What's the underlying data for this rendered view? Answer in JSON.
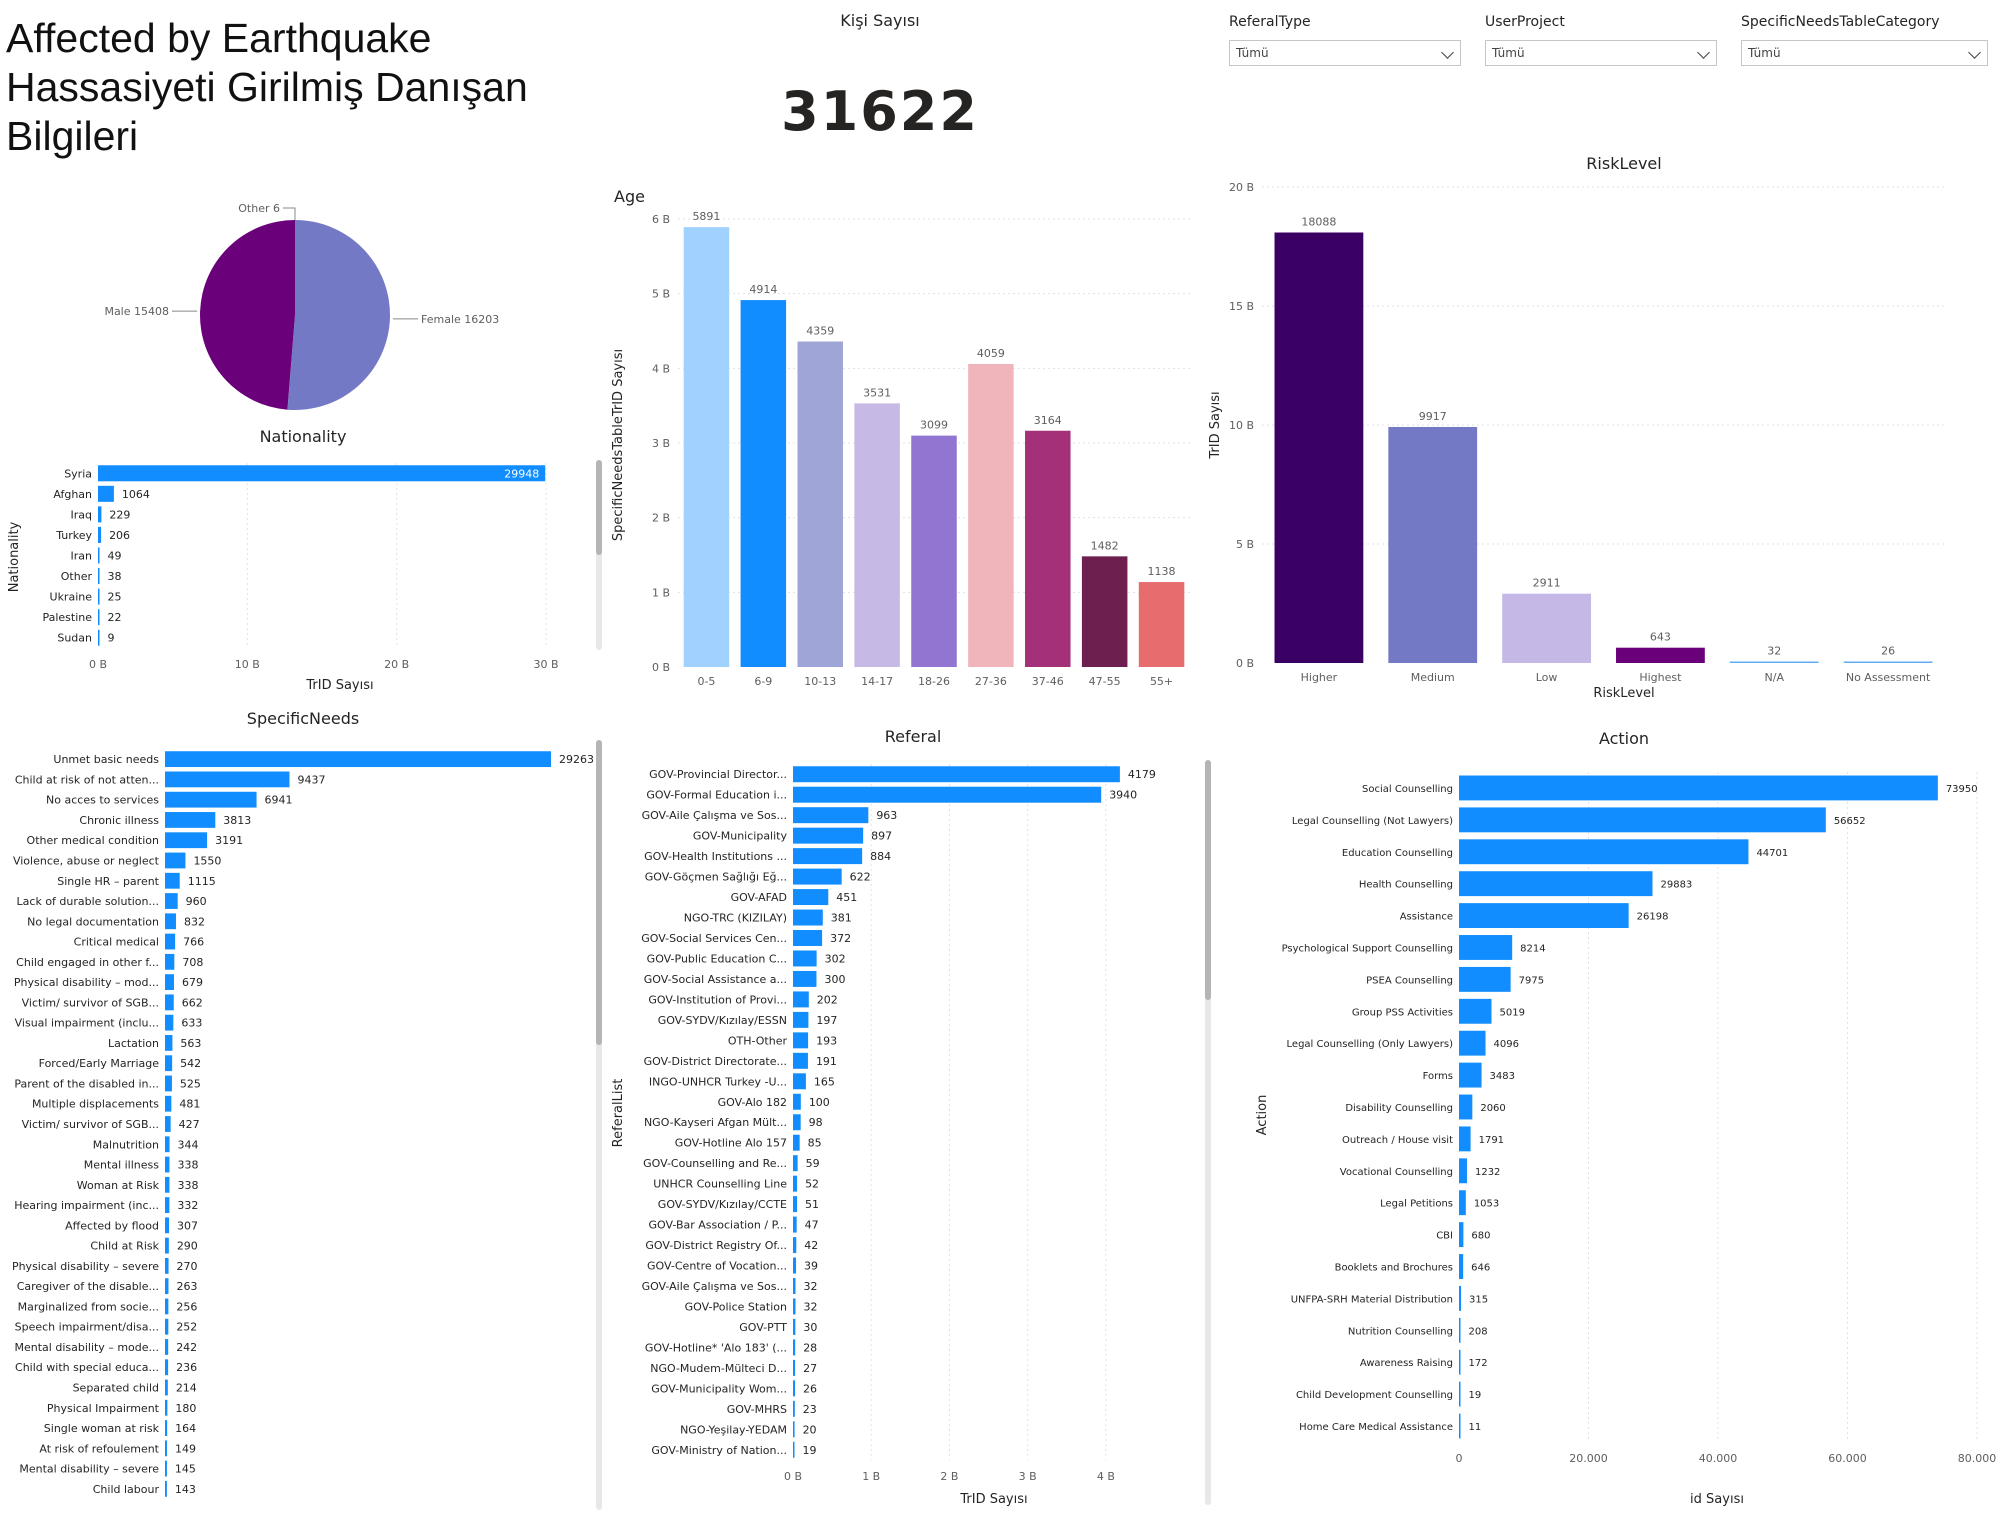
{
  "page": {
    "title": "Affected by Earthquake Hassasiyeti Girilmiş Danışan Bilgileri"
  },
  "kpi": {
    "label": "Kişi Sayısı",
    "value": "31622"
  },
  "slicers": [
    {
      "label": "ReferalType",
      "value": "Tümü"
    },
    {
      "label": "UserProject",
      "value": "Tümü"
    },
    {
      "label": "SpecificNeedsTableCategory",
      "value": "Tümü"
    }
  ],
  "colors": {
    "accent": "#118DFF",
    "text": "#252423",
    "grid": "#e1e1e1"
  },
  "chart_data": [
    {
      "id": "gender",
      "type": "pie",
      "title": "",
      "slices": [
        {
          "label": "Female",
          "value": 16203,
          "text": "Female 16203",
          "color": "#7479C6"
        },
        {
          "label": "Other",
          "value": 6,
          "text": "Other 6",
          "color": "#B0B0B0"
        },
        {
          "label": "Male",
          "value": 15408,
          "text": "Male 15408",
          "color": "#6B007B"
        }
      ]
    },
    {
      "id": "nationality",
      "type": "bar",
      "orientation": "horizontal",
      "title": "Nationality",
      "xlabel": "TrID Sayısı",
      "ylabel": "Nationality",
      "categories": [
        "Syria",
        "Afghan",
        "Iraq",
        "Turkey",
        "Iran",
        "Other",
        "Ukraine",
        "Palestine",
        "Sudan"
      ],
      "values": [
        29948,
        1064,
        229,
        206,
        49,
        38,
        25,
        22,
        9
      ],
      "xlim": [
        0,
        30000
      ],
      "ticks": [
        0,
        10000,
        20000,
        30000
      ],
      "tick_labels": [
        "0 B",
        "10 B",
        "20 B",
        "30 B"
      ],
      "color": "#118DFF",
      "grid": true
    },
    {
      "id": "age",
      "type": "bar",
      "title": "Age",
      "xlabel": "",
      "ylabel": "SpecificNeedsTableTrID Sayısı",
      "categories": [
        "0-5",
        "6-9",
        "10-13",
        "14-17",
        "18-26",
        "27-36",
        "37-46",
        "47-55",
        "55+"
      ],
      "values": [
        5891,
        4914,
        4359,
        3531,
        3099,
        4059,
        3164,
        1482,
        1138
      ],
      "colors": [
        "#A0D1FF",
        "#118DFF",
        "#A0A5D8",
        "#C6B9E6",
        "#9175D0",
        "#EFB5BA",
        "#A43079",
        "#6D1F4F",
        "#E66C6E"
      ],
      "ylim": [
        0,
        6000
      ],
      "ticks": [
        0,
        1000,
        2000,
        3000,
        4000,
        5000,
        6000
      ],
      "tick_labels": [
        "0 B",
        "1 B",
        "2 B",
        "3 B",
        "4 B",
        "5 B",
        "6 B"
      ],
      "grid": true
    },
    {
      "id": "risk",
      "type": "bar",
      "title": "RiskLevel",
      "xlabel": "RiskLevel",
      "ylabel": "TrID Sayısı",
      "categories": [
        "Higher",
        "Medium",
        "Low",
        "Highest",
        "N/A",
        "No Assessment"
      ],
      "values": [
        18088,
        9917,
        2911,
        643,
        32,
        26
      ],
      "colors": [
        "#3B0064",
        "#7479C6",
        "#C5B7E6",
        "#6B007B",
        "#5FAEF5",
        "#5FAEF5"
      ],
      "ylim": [
        0,
        20000
      ],
      "ticks": [
        0,
        5000,
        10000,
        15000,
        20000
      ],
      "tick_labels": [
        "0 B",
        "5 B",
        "10 B",
        "15 B",
        "20 B"
      ],
      "grid": true
    },
    {
      "id": "specific-needs",
      "type": "bar",
      "orientation": "horizontal",
      "title": "SpecificNeeds",
      "xlabel": "",
      "ylabel": "",
      "categories": [
        "Unmet basic needs",
        "Child at risk of not atten...",
        "No acces to services",
        "Chronic illness",
        "Other medical condition",
        "Violence, abuse or neglect",
        "Single HR – parent",
        "Lack of durable solution...",
        "No legal documentation",
        "Critical medical",
        "Child engaged in other f...",
        "Physical disability – mod...",
        "Victim/ survivor of SGB...",
        "Visual impairment (inclu...",
        "Lactation",
        "Forced/Early Marriage",
        "Parent of the disabled in...",
        "Multiple displacements",
        "Victim/ survivor of SGB...",
        "Malnutrition",
        "Mental illness",
        "Woman at Risk",
        "Hearing impairment (inc...",
        "Affected by flood",
        "Child at Risk",
        "Physical disability – severe",
        "Caregiver of the disable...",
        "Marginalized from socie...",
        "Speech impairment/disa...",
        "Mental disability – mode...",
        "Child with special educa...",
        "Separated child",
        "Physical Impairment",
        "Single woman at risk",
        "At risk of refoulement",
        "Mental disability – severe",
        "Child labour"
      ],
      "values": [
        29263,
        9437,
        6941,
        3813,
        3191,
        1550,
        1115,
        960,
        832,
        766,
        708,
        679,
        662,
        633,
        563,
        542,
        525,
        481,
        427,
        344,
        338,
        338,
        332,
        307,
        290,
        270,
        263,
        256,
        252,
        242,
        236,
        214,
        180,
        164,
        149,
        145,
        143
      ],
      "color": "#118DFF",
      "xlim": [
        0,
        29263
      ]
    },
    {
      "id": "referal",
      "type": "bar",
      "orientation": "horizontal",
      "title": "Referal",
      "xlabel": "TrID Sayısı",
      "ylabel": "ReferalList",
      "categories": [
        "GOV-Provincial Director...",
        "GOV-Formal Education i...",
        "GOV-Aile Çalışma ve Sos...",
        "GOV-Municipality",
        "GOV-Health Institutions ...",
        "GOV-Göçmen Sağlığı Eğ...",
        "GOV-AFAD",
        "NGO-TRC (KIZILAY)",
        "GOV-Social Services Cen...",
        "GOV-Public Education C...",
        "GOV-Social Assistance a...",
        "GOV-Institution of Provi...",
        "GOV-SYDV/Kızılay/ESSN",
        "OTH-Other",
        "GOV-District Directorate...",
        "INGO-UNHCR Turkey -U...",
        "GOV-Alo 182",
        "NGO-Kayseri Afgan Mült...",
        "GOV-Hotline Alo 157",
        "GOV-Counselling and Re...",
        "UNHCR Counselling Line",
        "GOV-SYDV/Kızılay/CCTE",
        "GOV-Bar Association / P...",
        "GOV-District Registry Of...",
        "GOV-Centre of Vocation...",
        "GOV-Aile Çalışma ve Sos...",
        "GOV-Police Station",
        "GOV-PTT",
        "GOV-Hotline* 'Alo 183' (...",
        "NGO-Mudem-Mülteci D...",
        "GOV-Municipality Wom...",
        "GOV-MHRS",
        "NGO-Yeşilay-YEDAM",
        "GOV-Ministry of Nation..."
      ],
      "values": [
        4179,
        3940,
        963,
        897,
        884,
        622,
        451,
        381,
        372,
        302,
        300,
        202,
        197,
        193,
        191,
        165,
        100,
        98,
        85,
        59,
        52,
        51,
        47,
        42,
        39,
        32,
        32,
        30,
        28,
        27,
        26,
        23,
        20,
        19
      ],
      "xlim": [
        0,
        4500
      ],
      "ticks": [
        0,
        1000,
        2000,
        3000,
        4000
      ],
      "tick_labels": [
        "0 B",
        "1 B",
        "2 B",
        "3 B",
        "4 B"
      ],
      "color": "#118DFF",
      "grid": true
    },
    {
      "id": "action",
      "type": "bar",
      "orientation": "horizontal",
      "title": "Action",
      "xlabel": "id Sayısı",
      "ylabel": "Action",
      "categories": [
        "Social Counselling",
        "Legal Counselling (Not Lawyers)",
        "Education Counselling",
        "Health Counselling",
        "Assistance",
        "Psychological Support Counselling",
        "PSEA Counselling",
        "Group PSS Activities",
        "Legal Counselling (Only Lawyers)",
        "Forms",
        "Disability Counselling",
        "Outreach / House visit",
        "Vocational Counselling",
        "Legal Petitions",
        "CBI",
        "Booklets and Brochures",
        "UNFPA-SRH Material Distribution",
        "Nutrition Counselling",
        "Awareness Raising",
        "Child Development Counselling",
        "Home Care Medical Assistance"
      ],
      "values": [
        73950,
        56652,
        44701,
        29883,
        26198,
        8214,
        7975,
        5019,
        4096,
        3483,
        2060,
        1791,
        1232,
        1053,
        680,
        646,
        315,
        208,
        172,
        19,
        11
      ],
      "xlim": [
        0,
        80000
      ],
      "ticks": [
        0,
        20000,
        40000,
        60000,
        80000
      ],
      "tick_labels": [
        "0",
        "20.000",
        "40.000",
        "60.000",
        "80.000"
      ],
      "color": "#118DFF",
      "grid": true
    }
  ]
}
